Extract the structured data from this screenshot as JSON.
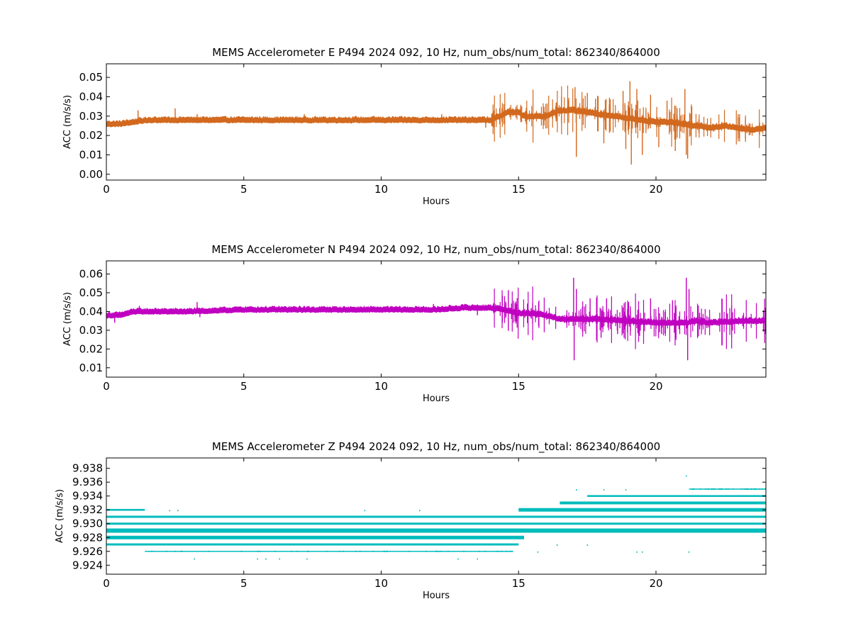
{
  "figure": {
    "background": "#ffffff",
    "axis_color": "#000000"
  },
  "chart_data": [
    {
      "type": "scatter",
      "title": "MEMS Accelerometer E P494 2024 092, 10 Hz, num_obs/num_total: 862340/864000",
      "xlabel": "Hours",
      "ylabel": "ACC (m/s/s)",
      "xlim": [
        0,
        24
      ],
      "ylim": [
        -0.003,
        0.057
      ],
      "xticks": [
        0,
        5,
        10,
        15,
        20
      ],
      "xtick_labels": [
        "0",
        "5",
        "10",
        "15",
        "20"
      ],
      "yticks": [
        0.0,
        0.01,
        0.02,
        0.03,
        0.04,
        0.05
      ],
      "ytick_labels": [
        "0.00",
        "0.01",
        "0.02",
        "0.03",
        "0.04",
        "0.05"
      ],
      "grid": false,
      "series": [
        {
          "color": "#d2691e",
          "band_half_width": 0.0015,
          "x": [
            0,
            0.5,
            1,
            1.5,
            2,
            3,
            5,
            8,
            10,
            12,
            13.5,
            14,
            14.3,
            14.6,
            15,
            15.2,
            15.6,
            16,
            16.5,
            17,
            17.5,
            18,
            18.5,
            19,
            19.5,
            20,
            20.5,
            21,
            21.5,
            22,
            22.5,
            23,
            23.5,
            24
          ],
          "y": [
            0.026,
            0.026,
            0.027,
            0.028,
            0.028,
            0.028,
            0.028,
            0.028,
            0.028,
            0.028,
            0.028,
            0.028,
            0.03,
            0.032,
            0.032,
            0.03,
            0.03,
            0.03,
            0.033,
            0.033,
            0.032,
            0.031,
            0.03,
            0.029,
            0.028,
            0.027,
            0.027,
            0.026,
            0.025,
            0.024,
            0.025,
            0.024,
            0.023,
            0.024
          ],
          "outliers_x": [
            1.15,
            2.5,
            3.3,
            7.2,
            12.2,
            13.8,
            16.8,
            17.05,
            17.1,
            17.5,
            17.8,
            18.1,
            18.3,
            18.8,
            18.9,
            19.05,
            19.1,
            19.3,
            19.5,
            19.8,
            20.1,
            20.4,
            20.7,
            21.05,
            21.1,
            21.15,
            21.3,
            22.1
          ],
          "outliers_y": [
            0.033,
            0.034,
            0.031,
            0.031,
            0.031,
            0.024,
            0.038,
            0.045,
            0.009,
            0.042,
            0.039,
            0.016,
            0.036,
            0.043,
            0.013,
            0.048,
            0.005,
            0.044,
            0.01,
            0.041,
            0.014,
            0.038,
            0.012,
            0.044,
            0.01,
            0.008,
            0.035,
            0.022
          ]
        }
      ]
    },
    {
      "type": "scatter",
      "title": "MEMS Accelerometer N P494 2024 092, 10 Hz, num_obs/num_total: 862340/864000",
      "xlabel": "Hours",
      "ylabel": "ACC (m/s/s)",
      "xlim": [
        0,
        24
      ],
      "ylim": [
        0.005,
        0.067
      ],
      "xticks": [
        0,
        5,
        10,
        15,
        20
      ],
      "xtick_labels": [
        "0",
        "5",
        "10",
        "15",
        "20"
      ],
      "yticks": [
        0.01,
        0.02,
        0.03,
        0.04,
        0.05,
        0.06
      ],
      "ytick_labels": [
        "0.01",
        "0.02",
        "0.03",
        "0.04",
        "0.05",
        "0.06"
      ],
      "grid": false,
      "series": [
        {
          "color": "#c000c0",
          "band_half_width": 0.0015,
          "x": [
            0,
            0.5,
            1,
            1.5,
            2,
            3,
            5,
            8,
            10,
            12,
            13,
            14,
            14.5,
            15,
            15.5,
            16,
            16.5,
            17,
            18,
            19,
            20,
            21,
            21.5,
            22,
            23,
            24
          ],
          "y": [
            0.038,
            0.038,
            0.04,
            0.04,
            0.04,
            0.04,
            0.041,
            0.041,
            0.041,
            0.041,
            0.042,
            0.042,
            0.041,
            0.039,
            0.039,
            0.038,
            0.036,
            0.036,
            0.036,
            0.035,
            0.034,
            0.034,
            0.035,
            0.034,
            0.035,
            0.035
          ],
          "outliers_x": [
            0.3,
            1.2,
            3.3,
            3.4,
            7.2,
            11.9,
            13.5,
            17.0,
            17.02,
            17.1,
            17.6,
            18.0,
            18.2,
            18.6,
            19.0,
            19.4,
            19.8,
            20.2,
            20.6,
            21.1,
            21.15,
            21.2,
            22.6
          ],
          "outliers_y": [
            0.034,
            0.043,
            0.045,
            0.037,
            0.043,
            0.044,
            0.038,
            0.058,
            0.014,
            0.052,
            0.047,
            0.026,
            0.047,
            0.028,
            0.045,
            0.027,
            0.047,
            0.028,
            0.046,
            0.058,
            0.014,
            0.052,
            0.039
          ]
        }
      ]
    },
    {
      "type": "scatter",
      "title": "MEMS Accelerometer Z P494 2024 092, 10 Hz, num_obs/num_total: 862340/864000",
      "xlabel": "Hours",
      "ylabel": "ACC (m/s/s)",
      "xlim": [
        0,
        24
      ],
      "ylim": [
        9.9227,
        9.9395
      ],
      "xticks": [
        0,
        5,
        10,
        15,
        20
      ],
      "xtick_labels": [
        "0",
        "5",
        "10",
        "15",
        "20"
      ],
      "yticks": [
        9.924,
        9.926,
        9.928,
        9.93,
        9.932,
        9.934,
        9.936,
        9.938
      ],
      "ytick_labels": [
        "9.924",
        "9.926",
        "9.928",
        "9.930",
        "9.932",
        "9.934",
        "9.936",
        "9.938"
      ],
      "grid": false,
      "series": [
        {
          "color": "#00bcbc",
          "quantized_levels": [
            {
              "y": 9.926,
              "x_start": 1.4,
              "x_end": 14.8,
              "weight": 1.5
            },
            {
              "y": 9.927,
              "x_start": 0,
              "x_end": 15.0,
              "weight": 3
            },
            {
              "y": 9.928,
              "x_start": 0,
              "x_end": 15.2,
              "weight": 5
            },
            {
              "y": 9.929,
              "x_start": 0,
              "x_end": 24,
              "weight": 6
            },
            {
              "y": 9.93,
              "x_start": 0,
              "x_end": 24,
              "weight": 3
            },
            {
              "y": 9.931,
              "x_start": 0,
              "x_end": 24,
              "weight": 3
            },
            {
              "y": 9.932,
              "x_start": 0,
              "x_end": 1.4,
              "weight": 2.5
            },
            {
              "y": 9.932,
              "x_start": 15.0,
              "x_end": 24,
              "weight": 5
            },
            {
              "y": 9.933,
              "x_start": 16.5,
              "x_end": 24,
              "weight": 4
            },
            {
              "y": 9.934,
              "x_start": 17.5,
              "x_end": 24,
              "weight": 2.5
            },
            {
              "y": 9.935,
              "x_start": 21.2,
              "x_end": 24,
              "weight": 1.5
            }
          ],
          "outliers_x": [
            2.3,
            2.6,
            3.2,
            5.5,
            5.8,
            6.3,
            7.3,
            9.4,
            11.4,
            12.8,
            13.5,
            15.7,
            16.4,
            17.1,
            17.5,
            18.1,
            18.9,
            19.3,
            19.5,
            21.1,
            21.2
          ],
          "outliers_y": [
            9.932,
            9.932,
            9.925,
            9.925,
            9.925,
            9.925,
            9.925,
            9.932,
            9.932,
            9.925,
            9.925,
            9.926,
            9.927,
            9.935,
            9.927,
            9.935,
            9.935,
            9.926,
            9.926,
            9.937,
            9.926
          ]
        }
      ]
    }
  ]
}
